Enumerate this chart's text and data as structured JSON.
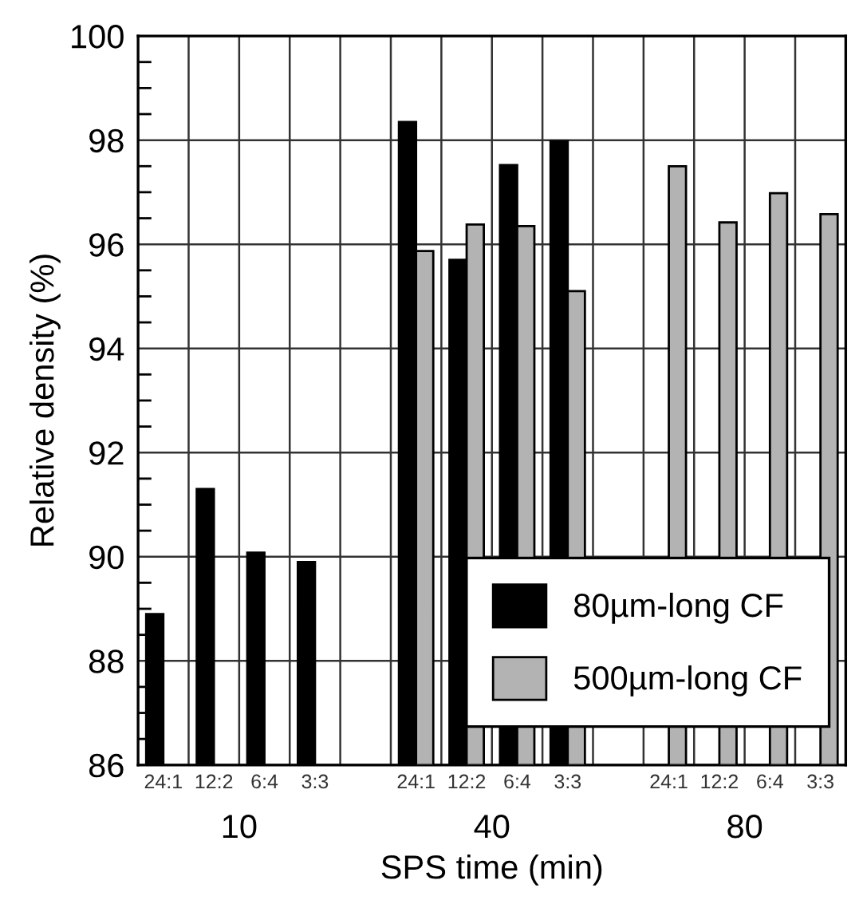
{
  "chart_data": {
    "type": "bar",
    "xlabel": "SPS time (min)",
    "ylabel": "Relative density (%)",
    "categories": [
      "24:1",
      "12:2",
      "6:4",
      "3:3",
      null,
      "24:1",
      "12:2",
      "6:4",
      "3:3",
      null,
      "24:1",
      "12:2",
      "6:4",
      "3:3"
    ],
    "series": [
      {
        "name": "80µm-long CF",
        "color": "#000000",
        "values": [
          88.9,
          91.3,
          90.08,
          89.9,
          null,
          98.35,
          95.7,
          97.52,
          97.98,
          null,
          null,
          null,
          null,
          null
        ]
      },
      {
        "name": "500µm-long CF",
        "color": "#b3b3b3",
        "values": [
          null,
          null,
          null,
          null,
          null,
          95.87,
          96.38,
          96.35,
          95.1,
          null,
          97.5,
          96.42,
          96.98,
          96.58
        ]
      }
    ],
    "annotations": [
      "10",
      "40",
      "80"
    ],
    "ylim": [
      86,
      100
    ],
    "yticks": [
      86,
      {
        "value": 86.5,
        "label": null
      },
      {
        "value": 87,
        "label": null
      },
      {
        "value": 87.5,
        "label": null
      },
      88,
      {
        "value": 88.5,
        "label": null
      },
      {
        "value": 89,
        "label": null
      },
      {
        "value": 89.5,
        "label": null
      },
      90,
      {
        "value": 90.5,
        "label": null
      },
      {
        "value": 91,
        "label": null
      },
      {
        "value": 91.5,
        "label": null
      },
      92,
      {
        "value": 92.5,
        "label": null
      },
      {
        "value": 93,
        "label": null
      },
      {
        "value": 93.5,
        "label": null
      },
      94,
      {
        "value": 94.5,
        "label": null
      },
      {
        "value": 95,
        "label": null
      },
      {
        "value": 95.5,
        "label": null
      },
      96,
      {
        "value": 96.5,
        "label": null
      },
      {
        "value": 97,
        "label": null
      },
      {
        "value": 97.5,
        "label": null
      },
      98,
      {
        "value": 98.5,
        "label": null
      },
      {
        "value": 99,
        "label": null
      },
      {
        "value": 99.5,
        "label": null
      },
      100
    ],
    "grid": true,
    "legend": "bottom right"
  }
}
